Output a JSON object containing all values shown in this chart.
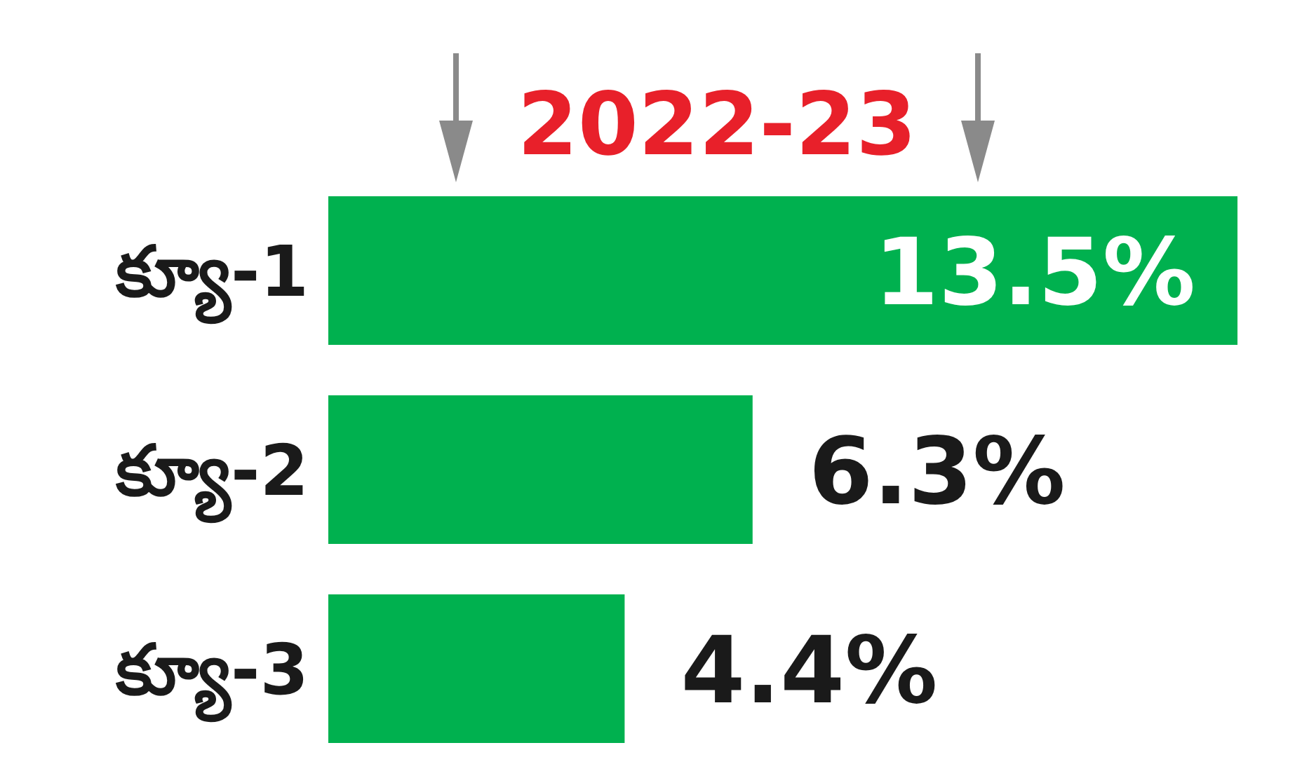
{
  "chart_data": {
    "type": "bar",
    "orientation": "horizontal",
    "title": "2022-23",
    "categories": [
      "క్యూ-1",
      "క్యూ-2",
      "క్యూ-3"
    ],
    "values": [
      13.5,
      6.3,
      4.4
    ],
    "value_labels": [
      "13.5%",
      "6.3%",
      "4.4%"
    ],
    "color": "#00b14f"
  }
}
